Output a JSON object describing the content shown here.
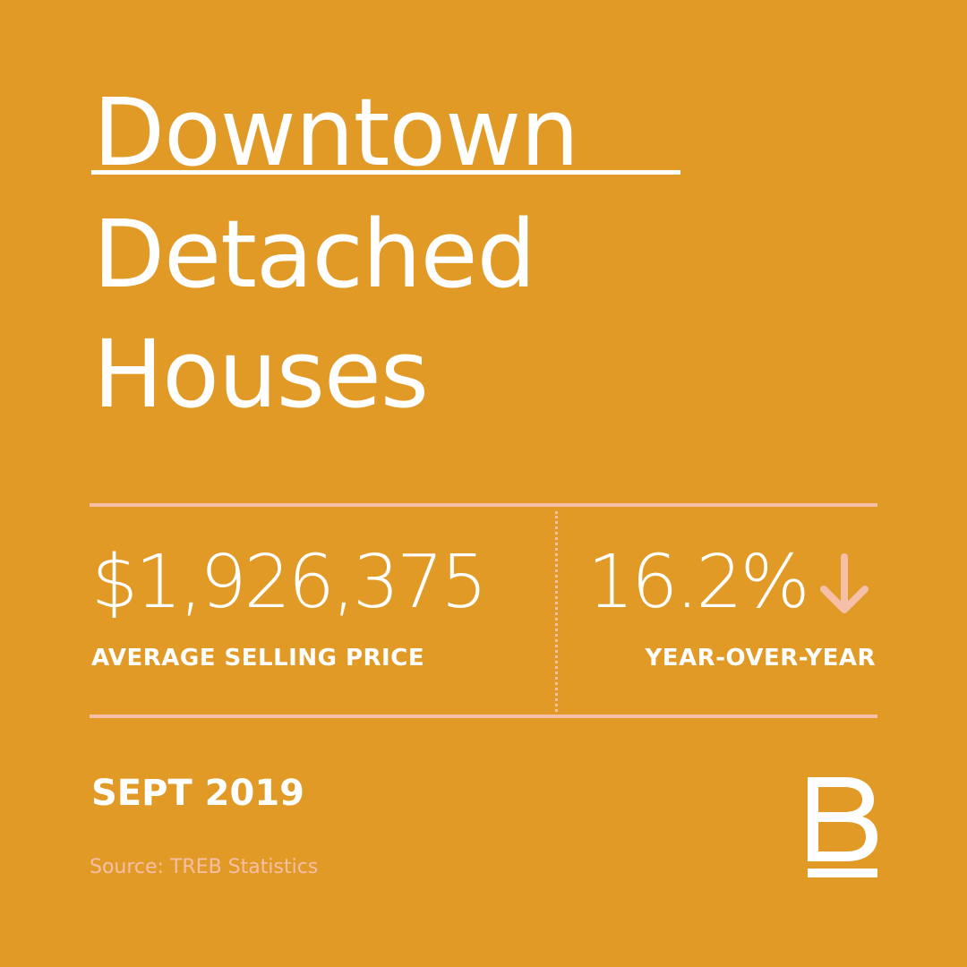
{
  "title": {
    "line1": "Downtown",
    "line2": "Detached",
    "line3": "Houses"
  },
  "stats": {
    "price": {
      "value": "$1,926,375",
      "label": "AVERAGE SELLING PRICE"
    },
    "yoy": {
      "value": "16.2%",
      "label": "YEAR-OVER-YEAR",
      "direction_icon": "arrow-down-icon"
    }
  },
  "date": "SEPT 2019",
  "source": "Source: TREB Statistics",
  "brand": {
    "logo_icon": "brand-b-logo-icon"
  },
  "colors": {
    "background": "#E29A26",
    "text": "#FFFFFF",
    "accent": "#F5BFA8"
  }
}
